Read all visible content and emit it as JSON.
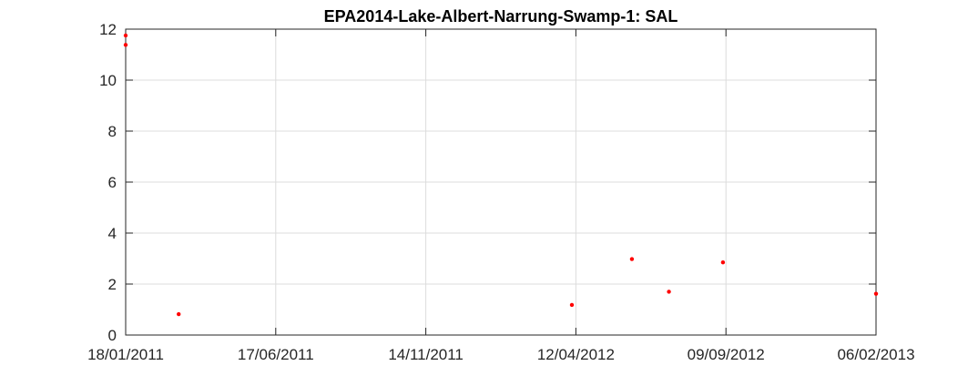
{
  "chart_data": {
    "type": "scatter",
    "title": "EPA2014-Lake-Albert-Narrung-Swamp-1: SAL",
    "xlabel": "",
    "ylabel": "",
    "x_axis": {
      "type": "date",
      "range": [
        "18/01/2011",
        "06/02/2013"
      ],
      "ticks": [
        "18/01/2011",
        "17/06/2011",
        "14/11/2011",
        "12/04/2012",
        "09/09/2012",
        "06/02/2013"
      ]
    },
    "y_axis": {
      "range": [
        0,
        12
      ],
      "ticks": [
        0,
        2,
        4,
        6,
        8,
        10,
        12
      ]
    },
    "grid": true,
    "marker_color": "#ff0000",
    "points": [
      {
        "x": "18/01/2011",
        "y": 11.75
      },
      {
        "x": "18/01/2011",
        "y": 11.38
      },
      {
        "x": "12/03/2011",
        "y": 0.82
      },
      {
        "x": "08/04/2012",
        "y": 1.18
      },
      {
        "x": "07/06/2012",
        "y": 2.98
      },
      {
        "x": "14/07/2012",
        "y": 1.7
      },
      {
        "x": "06/09/2012",
        "y": 2.85
      },
      {
        "x": "06/02/2013",
        "y": 1.62
      }
    ]
  }
}
